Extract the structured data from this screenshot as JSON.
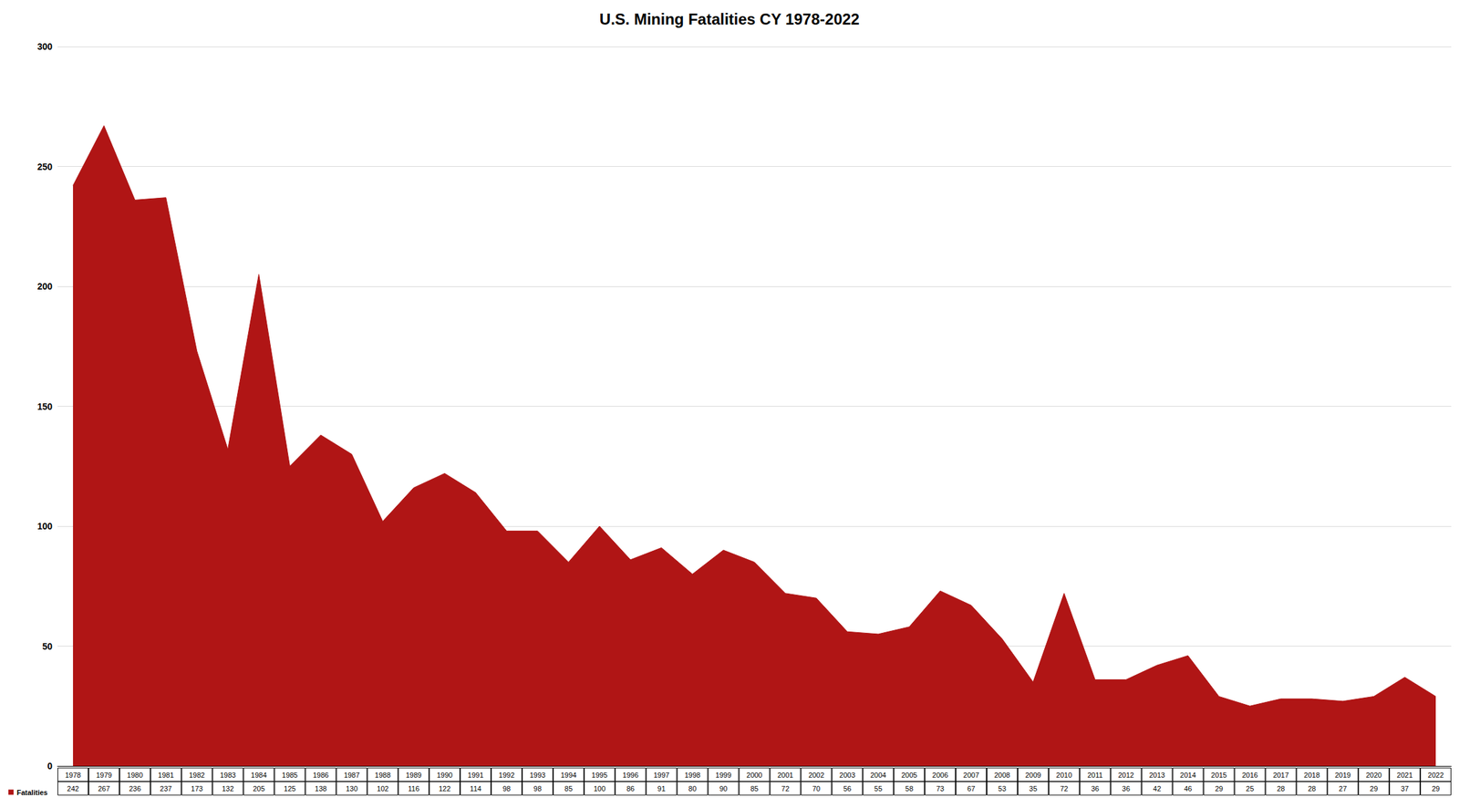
{
  "chart_data": {
    "type": "area",
    "title": "U.S. Mining Fatalities CY 1978-2022",
    "categories": [
      "1978",
      "1979",
      "1980",
      "1981",
      "1982",
      "1983",
      "1984",
      "1985",
      "1986",
      "1987",
      "1988",
      "1989",
      "1990",
      "1991",
      "1992",
      "1993",
      "1994",
      "1995",
      "1996",
      "1997",
      "1998",
      "1999",
      "2000",
      "2001",
      "2002",
      "2003",
      "2004",
      "2005",
      "2006",
      "2007",
      "2008",
      "2009",
      "2010",
      "2011",
      "2012",
      "2013",
      "2014",
      "2015",
      "2016",
      "2017",
      "2018",
      "2019",
      "2020",
      "2021",
      "2022"
    ],
    "series": [
      {
        "name": "Fatalities",
        "color": "#b01515",
        "values": [
          242,
          267,
          236,
          237,
          173,
          132,
          205,
          125,
          138,
          130,
          102,
          116,
          122,
          114,
          98,
          98,
          85,
          100,
          86,
          91,
          80,
          90,
          85,
          72,
          70,
          56,
          55,
          58,
          73,
          67,
          53,
          35,
          72,
          36,
          36,
          42,
          46,
          29,
          25,
          28,
          28,
          27,
          29,
          37,
          29
        ]
      }
    ],
    "ylim": [
      0,
      300
    ],
    "yticks": [
      0,
      50,
      100,
      150,
      200,
      250,
      300
    ],
    "grid": true,
    "legend": "bottom-left",
    "data_labels": true
  }
}
